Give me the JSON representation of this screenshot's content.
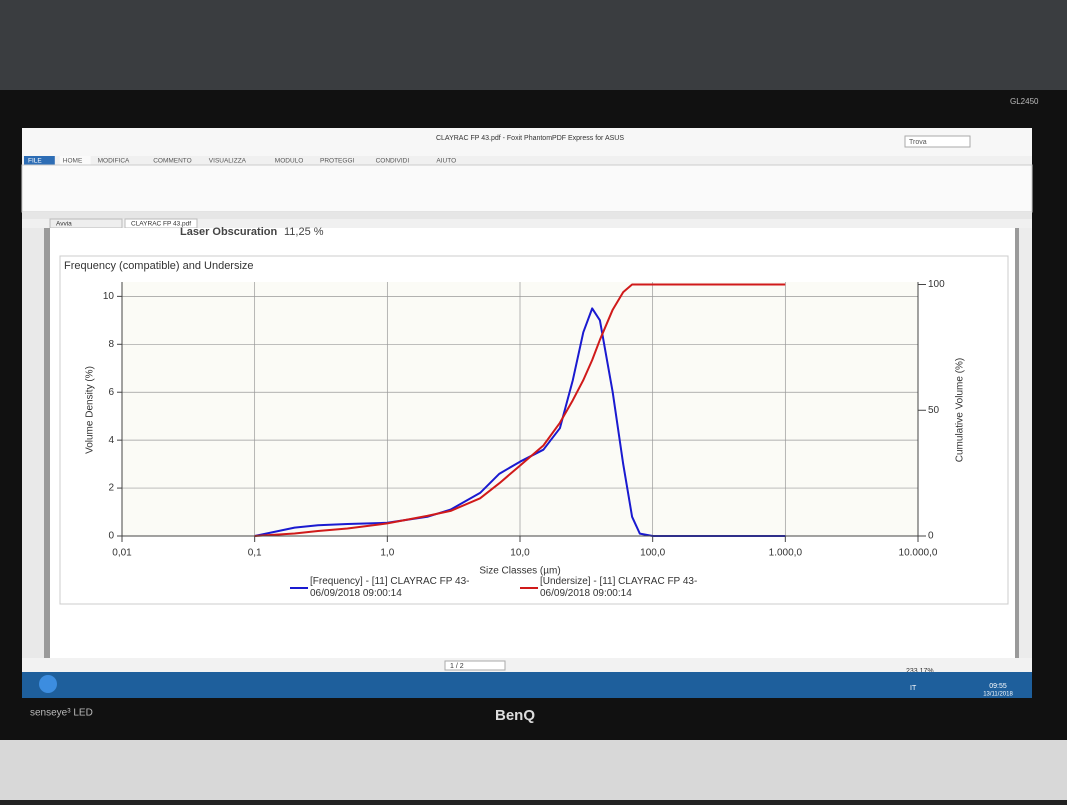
{
  "ui": {
    "window_title": "CLAYRAC FP 43.pdf - Foxit PhantomPDF Express for ASUS",
    "tabs": [
      "FILE",
      "HOME",
      "MODIFICA",
      "COMMENTO",
      "VISUALIZZA",
      "MODULO",
      "PROTEGGI",
      "CONDIVIDI",
      "AIUTO"
    ],
    "search": "Trova",
    "doc_tabs": [
      "Avvia",
      "CLAYRAC FP 43.pdf"
    ],
    "header_label": "Laser Obscuration",
    "header_value": "11,25 %",
    "page_indicator": "1 / 2",
    "zoom": "233,17%",
    "language": "IT",
    "time": "09:55",
    "date": "13/11/2018",
    "monitor_brand": "BenQ",
    "monitor_model": "GL2450",
    "monitor_badge": "senseye³ LED"
  },
  "chart_data": {
    "type": "line",
    "title": "Frequency (compatible) and Undersize",
    "x_label": "Size Classes (µm)",
    "y_label": "Volume Density (%)",
    "y2_label": "Cumulative Volume (%)",
    "x_scale": "log",
    "x": [
      0.1,
      0.2,
      0.3,
      0.5,
      1,
      2,
      3,
      5,
      7,
      10,
      15,
      20,
      25,
      30,
      35,
      40,
      50,
      60,
      70,
      80,
      100,
      1000
    ],
    "series": [
      {
        "name": "[Frequency] - [11] CLAYRAC FP 43-06/09/2018 09:00:14",
        "color": "#1a1ad0",
        "values": [
          0,
          0.35,
          0.45,
          0.5,
          0.55,
          0.8,
          1.1,
          1.8,
          2.6,
          3.1,
          3.6,
          4.5,
          6.5,
          8.5,
          9.5,
          9.0,
          6,
          3,
          0.8,
          0.1,
          0,
          0
        ]
      },
      {
        "name": "[Undersize] - [11] CLAYRAC FP 43-06/09/2018 09:00:14",
        "color": "#d01a1a",
        "axis": "y2",
        "values": [
          0,
          1,
          2,
          3,
          5,
          8,
          10,
          15,
          21,
          28,
          36,
          45,
          54,
          62,
          70,
          78,
          90,
          97,
          100,
          100,
          100,
          100
        ]
      }
    ],
    "xlim": [
      0.01,
      10000
    ],
    "xticks": [
      {
        "value": 0.01,
        "label": "0,01"
      },
      {
        "value": 0.1,
        "label": "0,1"
      },
      {
        "value": 1,
        "label": "1,0"
      },
      {
        "value": 10,
        "label": "10,0"
      },
      {
        "value": 100,
        "label": "100,0"
      },
      {
        "value": 1000,
        "label": "1.000,0"
      },
      {
        "value": 10000,
        "label": "10.000,0"
      }
    ],
    "ylim": [
      0,
      10.6
    ],
    "yticks": [
      0,
      2,
      4,
      6,
      8,
      10
    ],
    "y2lim": [
      0,
      101
    ],
    "y2ticks": [
      0,
      50,
      100
    ],
    "grid": true
  }
}
